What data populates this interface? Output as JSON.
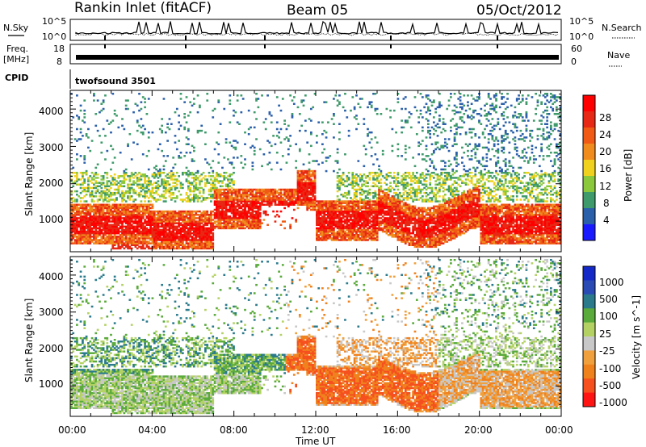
{
  "header": {
    "station": "Rankin Inlet (fitACF)",
    "beam": "Beam 05",
    "date": "05/Oct/2012"
  },
  "status_panels": {
    "nsky_label": "N.Sky",
    "nsearch_label": "N.Search",
    "nsky_ticks": [
      "10^5",
      "10^0"
    ],
    "nsearch_ticks": [
      "10^5",
      "10^0"
    ],
    "freq_label_line1": "Freq.",
    "freq_label_line2": "[MHz]",
    "freq_ticks": [
      "18",
      "8"
    ],
    "nave_label": "Nave",
    "nave_ticks": [
      "60",
      "0"
    ],
    "cpid_label": "CPID",
    "cpid_value": "twofsound 3501"
  },
  "colors": {
    "power_scale": [
      "#1a1aff",
      "#2a5faa",
      "#3e9a6a",
      "#8cc83c",
      "#f0d21e",
      "#f08c1e",
      "#f05a14",
      "#e62814",
      "#ff0000"
    ],
    "velocity_scale": [
      "#ff1414",
      "#f5501e",
      "#f0821e",
      "#f0a03c",
      "#c8c8c8",
      "#b4d264",
      "#5aaa3c",
      "#2a7a8c",
      "#2a4ab4",
      "#1428c8"
    ]
  },
  "chart_data": [
    {
      "type": "heatmap",
      "name": "power",
      "ylabel": "Slant Range [km]",
      "xlabel": "",
      "x_ticks": [
        "00:00",
        "04:00",
        "08:00",
        "12:00",
        "16:00",
        "20:00",
        "00:00"
      ],
      "y_ticks": [
        "1000",
        "2000",
        "3000",
        "4000"
      ],
      "xlim_hours": [
        0,
        24
      ],
      "ylim_km": [
        180,
        4500
      ],
      "colorbar_label": "Power [dB]",
      "colorbar_ticks": [
        "28",
        "24",
        "20",
        "16",
        "12",
        "8",
        "4"
      ]
    },
    {
      "type": "heatmap",
      "name": "velocity",
      "ylabel": "Slant Range [km]",
      "xlabel": "Time UT",
      "x_ticks": [
        "00:00",
        "04:00",
        "08:00",
        "12:00",
        "16:00",
        "20:00",
        "00:00"
      ],
      "y_ticks": [
        "1000",
        "2000",
        "3000",
        "4000"
      ],
      "xlim_hours": [
        0,
        24
      ],
      "ylim_km": [
        180,
        4500
      ],
      "colorbar_label": "Velocity [m s^-1]",
      "colorbar_ticks": [
        "1000",
        "500",
        "100",
        "25",
        "-25",
        "-100",
        "-500",
        "-1000"
      ]
    }
  ]
}
